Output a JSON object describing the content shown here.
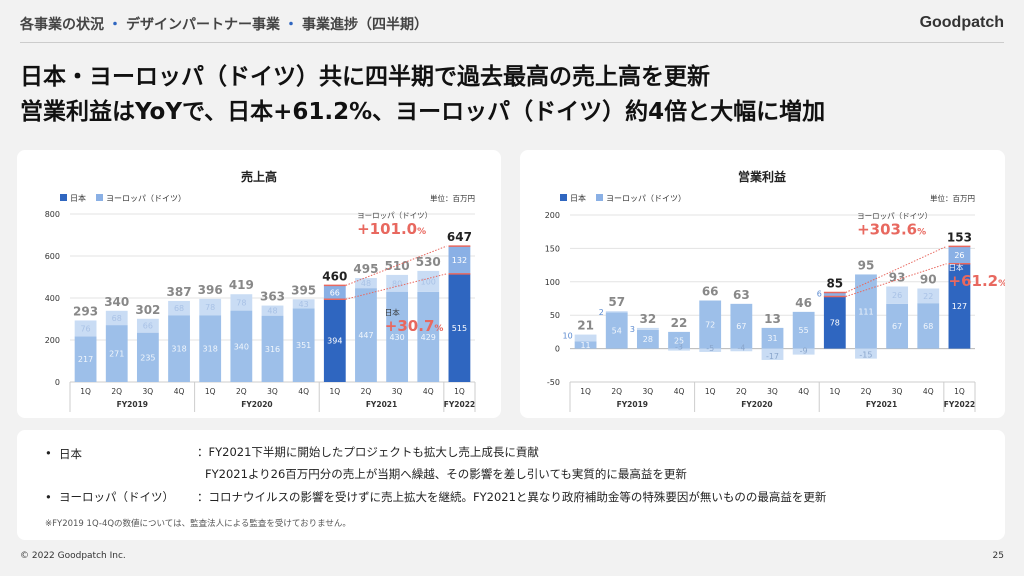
{
  "header": {
    "crumb1": "各事業の状況",
    "crumb2": "デザインパートナー事業",
    "crumb3": "事業進捗（四半期）",
    "sep": "・",
    "logo": "Goodpatch"
  },
  "headline": {
    "line1": "日本・ヨーロッパ（ドイツ）共に四半期で過去最高の売上高を更新",
    "line2": "営業利益はYoYで、日本+61.2%、ヨーロッパ（ドイツ）約4倍と大幅に増加"
  },
  "colors": {
    "jp_hi": "#2f66c0",
    "eu_hi": "#8ab0e5",
    "jp_lo": "#9dbfe9",
    "eu_lo": "#c9dcf4",
    "accent": "#e8685f"
  },
  "chart_data": [
    {
      "type": "bar",
      "stacked": true,
      "title": "売上高",
      "unit": "単位：百万円",
      "legend": [
        "日本",
        "ヨーロッパ（ドイツ）"
      ],
      "legend_position": "top-left",
      "categories": [
        "1Q",
        "2Q",
        "3Q",
        "4Q",
        "1Q",
        "2Q",
        "3Q",
        "4Q",
        "1Q",
        "2Q",
        "3Q",
        "4Q",
        "1Q"
      ],
      "groups": [
        {
          "label": "FY2019",
          "span": 4
        },
        {
          "label": "FY2020",
          "span": 4
        },
        {
          "label": "FY2021",
          "span": 4
        },
        {
          "label": "FY2022",
          "span": 1
        }
      ],
      "series": [
        {
          "name": "日本",
          "values": [
            217,
            271,
            235,
            318,
            318,
            340,
            316,
            351,
            394,
            447,
            430,
            429,
            515
          ]
        },
        {
          "name": "ヨーロッパ（ドイツ）",
          "values": [
            76,
            68,
            66,
            68,
            78,
            78,
            48,
            43,
            66,
            48,
            80,
            100,
            132
          ]
        }
      ],
      "totals": [
        293,
        340,
        302,
        387,
        396,
        419,
        363,
        395,
        460,
        495,
        510,
        530,
        647
      ],
      "highlight": [
        8,
        12
      ],
      "ylim": [
        0,
        800
      ],
      "yticks": [
        0,
        200,
        400,
        600,
        800
      ],
      "grid": true,
      "annotations": [
        {
          "label": "ヨーロッパ（ドイツ）",
          "value": "+101.0",
          "suffix": "%"
        },
        {
          "label": "日本",
          "value": "+30.7",
          "suffix": "%"
        }
      ]
    },
    {
      "type": "bar",
      "stacked": true,
      "title": "営業利益",
      "unit": "単位：百万円",
      "legend": [
        "日本",
        "ヨーロッパ（ドイツ）"
      ],
      "legend_position": "top-left",
      "categories": [
        "1Q",
        "2Q",
        "3Q",
        "4Q",
        "1Q",
        "2Q",
        "3Q",
        "4Q",
        "1Q",
        "2Q",
        "3Q",
        "4Q",
        "1Q"
      ],
      "groups": [
        {
          "label": "FY2019",
          "span": 4
        },
        {
          "label": "FY2020",
          "span": 4
        },
        {
          "label": "FY2021",
          "span": 4
        },
        {
          "label": "FY2022",
          "span": 1
        }
      ],
      "series": [
        {
          "name": "日本",
          "values": [
            11,
            54,
            28,
            25,
            72,
            67,
            31,
            55,
            78,
            111,
            67,
            68,
            127
          ]
        },
        {
          "name": "ヨーロッパ（ドイツ）",
          "values": [
            10,
            2,
            3,
            -3,
            -5,
            -4,
            -17,
            -9,
            6,
            -15,
            26,
            22,
            26
          ]
        }
      ],
      "totals": [
        21,
        57,
        32,
        22,
        66,
        63,
        13,
        46,
        85,
        95,
        93,
        90,
        153
      ],
      "highlight": [
        8,
        12
      ],
      "ylim": [
        -50,
        200
      ],
      "yticks": [
        -50,
        0,
        50,
        100,
        150,
        200
      ],
      "grid": true,
      "annotations": [
        {
          "label": "ヨーロッパ（ドイツ）",
          "value": "+303.6",
          "suffix": "%"
        },
        {
          "label": "日本",
          "value": "+61.2",
          "suffix": "%"
        }
      ]
    }
  ],
  "notes": {
    "jp_label": "日本",
    "jp_text1": "：FY2021下半期に開始したプロジェクトも拡大し売上成長に貢献",
    "jp_text2": "FY2021より26百万円分の売上が当期へ繰越、その影響を差し引いても実質的に最高益を更新",
    "eu_label": "ヨーロッパ（ドイツ）",
    "eu_text": "：コロナウイルスの影響を受けずに売上拡大を継続。FY2021と異なり政府補助金等の特殊要因が無いものの最高益を更新",
    "footnote": "※FY2019 1Q-4Qの数値については、監査法人による監査を受けておりません。",
    "bullet": "•"
  },
  "footer": {
    "copyright": "© 2022 Goodpatch Inc.",
    "page": "25"
  }
}
